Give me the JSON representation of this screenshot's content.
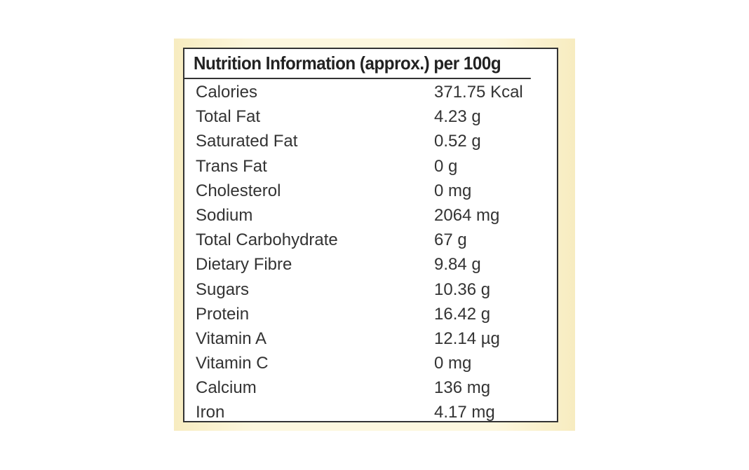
{
  "table": {
    "title": "Nutrition Information (approx.) per 100g",
    "rows": [
      [
        "Calories",
        "371.75 Kcal"
      ],
      [
        "Total Fat",
        "4.23 g"
      ],
      [
        "Saturated Fat",
        "0.52 g"
      ],
      [
        "Trans Fat",
        "0 g"
      ],
      [
        "Cholesterol",
        "0 mg"
      ],
      [
        "Sodium",
        "2064 mg"
      ],
      [
        "Total Carbohydrate",
        "67 g"
      ],
      [
        "Dietary Fibre",
        "9.84 g"
      ],
      [
        "Sugars",
        "10.36 g"
      ],
      [
        "Protein",
        "16.42 g"
      ],
      [
        "Vitamin A",
        "12.14 µg"
      ],
      [
        "Vitamin C",
        "0 mg"
      ],
      [
        "Calcium",
        "136 mg"
      ],
      [
        "Iron",
        "4.17 mg"
      ]
    ]
  }
}
